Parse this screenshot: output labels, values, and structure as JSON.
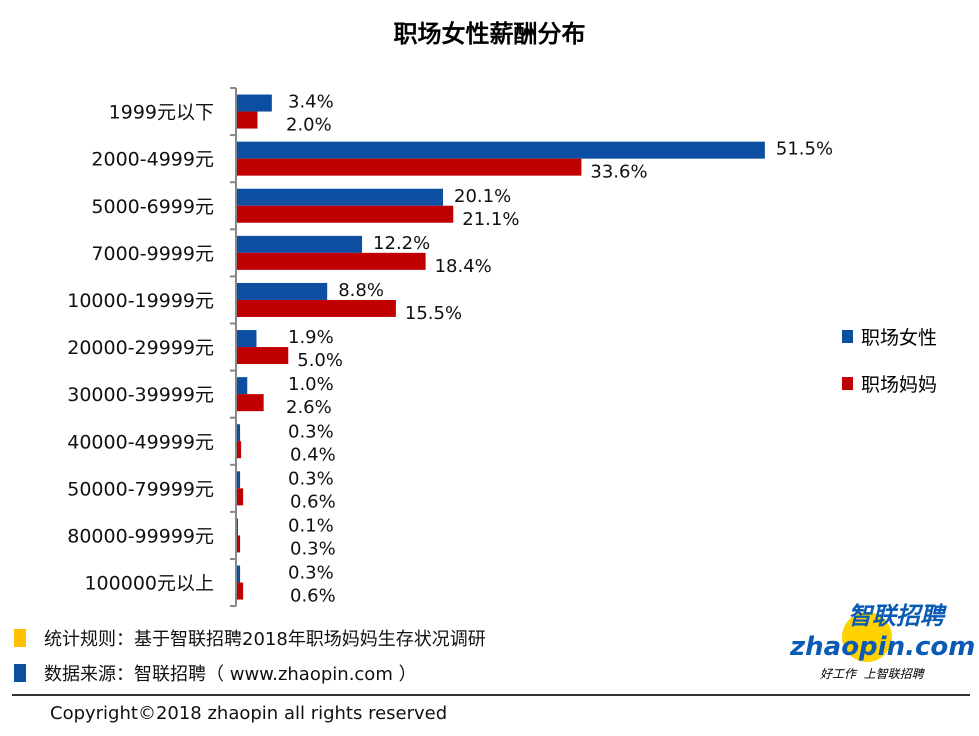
{
  "chart_data": {
    "type": "bar",
    "orientation": "horizontal",
    "title": "职场女性薪酬分布",
    "categories": [
      "1999元以下",
      "2000-4999元",
      "5000-6999元",
      "7000-9999元",
      "10000-19999元",
      "20000-29999元",
      "30000-39999元",
      "40000-49999元",
      "50000-79999元",
      "80000-99999元",
      "100000元以上"
    ],
    "series": [
      {
        "name": "职场女性",
        "color": "#0B4EA2",
        "values": [
          3.4,
          51.5,
          20.1,
          12.2,
          8.8,
          1.9,
          1.0,
          0.3,
          0.3,
          0.1,
          0.3
        ],
        "labels": [
          "3.4%",
          "51.5%",
          "20.1%",
          "12.2%",
          "8.8%",
          "1.9%",
          "1.0%",
          "0.3%",
          "0.3%",
          "0.1%",
          "0.3%"
        ]
      },
      {
        "name": "职场妈妈",
        "color": "#C00000",
        "values": [
          2.0,
          33.6,
          21.1,
          18.4,
          15.5,
          5.0,
          2.6,
          0.4,
          0.6,
          0.3,
          0.6
        ],
        "labels": [
          "2.0%",
          "33.6%",
          "21.1%",
          "18.4%",
          "15.5%",
          "5.0%",
          "2.6%",
          "0.4%",
          "0.6%",
          "0.3%",
          "0.6%"
        ]
      }
    ],
    "legend": "right",
    "grid": false
  },
  "notes": {
    "rule": "统计规则：基于智联招聘2018年职场妈妈生存状况调研",
    "source": "数据来源：智联招聘（ www.zhaopin.com ）",
    "rule_color": "#FFC000",
    "source_color": "#0B4EA2"
  },
  "copyright": "Copyright©2018 zhaopin all rights reserved",
  "logo": {
    "cn": "智联招聘",
    "en": "zhaopin.com",
    "slogan": "好工作  上智联招聘"
  }
}
